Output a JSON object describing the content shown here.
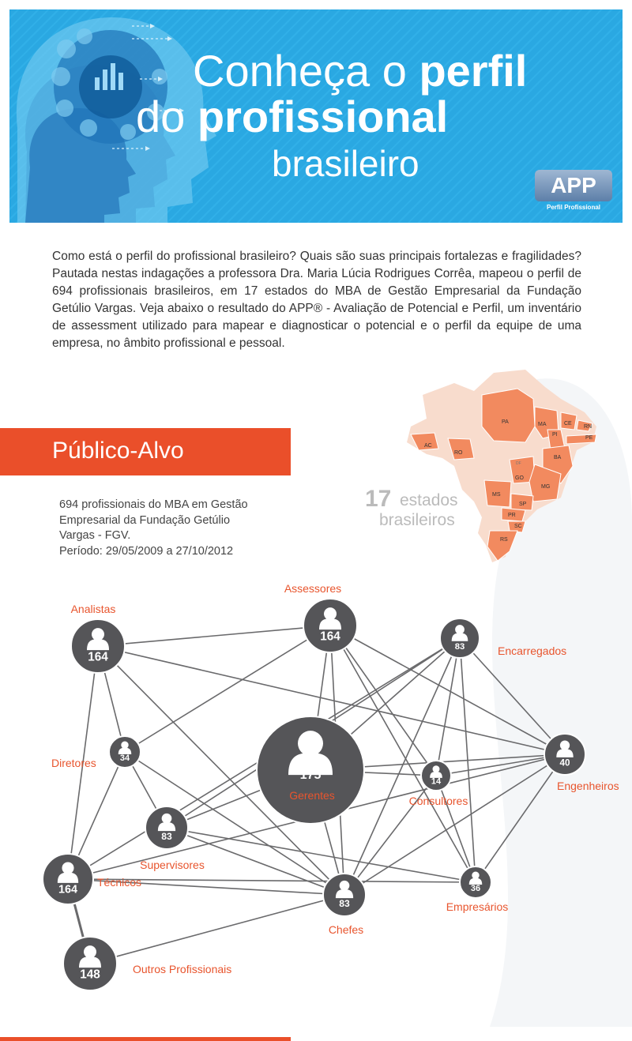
{
  "header": {
    "title_line1_light": "Conheça o ",
    "title_line1_bold": "perfil",
    "title_line2_light": "do ",
    "title_line2_bold": "profissional",
    "title_line3": "brasileiro",
    "logo_text": "APP",
    "logo_subtitle": "Perfil Profissional"
  },
  "intro": "Como está o perfil do profissional brasileiro? Quais são suas principais fortalezas e fragilidades? Pautada nestas indagações a professora Dra. Maria Lúcia Rodrigues Corrêa, mapeou o perfil de 694 profissionais brasileiros, em 17 estados do MBA de Gestão Empresarial da Fundação Getúlio Vargas. Veja abaixo o resultado do APP® - Avaliação de Potencial e Perfil,  um inventário de assessment utilizado para mapear e diagnosticar o potencial e o perfil da equipe de uma empresa, no âmbito profissional e pessoal.",
  "publico": {
    "title": "Público-Alvo",
    "lines": [
      "694 profissionais do MBA em Gestão",
      "Empresarial da Fundação Getúlio",
      "Vargas - FGV.",
      "Período: 29/05/2009 a 27/10/2012"
    ]
  },
  "map": {
    "count": "17",
    "label_line1": "estados",
    "label_line2": "brasileiros",
    "states": [
      "PA",
      "MA",
      "CE",
      "RN",
      "PI",
      "PE",
      "BA",
      "AC",
      "RO",
      "DF",
      "GO",
      "MG",
      "MS",
      "SP",
      "PR",
      "SC",
      "RS"
    ],
    "highlight_color": "#f28a5f"
  },
  "network": {
    "nodes": [
      {
        "id": "analistas",
        "label": "Analistas",
        "value": "164"
      },
      {
        "id": "assessores",
        "label": "Assessores",
        "value": "164"
      },
      {
        "id": "encarregados",
        "label": "Encarregados",
        "value": "83"
      },
      {
        "id": "diretores",
        "label": "Diretores",
        "value": "34"
      },
      {
        "id": "gerentes",
        "label": "Gerentes",
        "value": "175"
      },
      {
        "id": "consultores",
        "label": "Consultores",
        "value": "14"
      },
      {
        "id": "engenheiros",
        "label": "Engenheiros",
        "value": "40"
      },
      {
        "id": "supervisores",
        "label": "Supervisores",
        "value": "83"
      },
      {
        "id": "tecnicos",
        "label": "Técnicos",
        "value": "164"
      },
      {
        "id": "chefes",
        "label": "Chefes",
        "value": "83"
      },
      {
        "id": "empresarios",
        "label": "Empresários",
        "value": "36"
      },
      {
        "id": "outros",
        "label": "Outros Profissionais",
        "value": "148"
      }
    ],
    "edges": [
      [
        "analistas",
        "diretores"
      ],
      [
        "analistas",
        "tecnicos"
      ],
      [
        "analistas",
        "assessores"
      ],
      [
        "analistas",
        "chefes"
      ],
      [
        "analistas",
        "engenheiros"
      ],
      [
        "assessores",
        "diretores"
      ],
      [
        "assessores",
        "gerentes"
      ],
      [
        "assessores",
        "chefes"
      ],
      [
        "assessores",
        "consultores"
      ],
      [
        "assessores",
        "engenheiros"
      ],
      [
        "assessores",
        "empresarios"
      ],
      [
        "encarregados",
        "gerentes"
      ],
      [
        "encarregados",
        "consultores"
      ],
      [
        "encarregados",
        "engenheiros"
      ],
      [
        "encarregados",
        "chefes"
      ],
      [
        "encarregados",
        "empresarios"
      ],
      [
        "encarregados",
        "supervisores"
      ],
      [
        "encarregados",
        "tecnicos"
      ],
      [
        "diretores",
        "supervisores"
      ],
      [
        "diretores",
        "tecnicos"
      ],
      [
        "diretores",
        "chefes"
      ],
      [
        "gerentes",
        "consultores"
      ],
      [
        "gerentes",
        "engenheiros"
      ],
      [
        "gerentes",
        "chefes"
      ],
      [
        "gerentes",
        "supervisores"
      ],
      [
        "consultores",
        "engenheiros"
      ],
      [
        "consultores",
        "chefes"
      ],
      [
        "consultores",
        "empresarios"
      ],
      [
        "engenheiros",
        "tecnicos"
      ],
      [
        "engenheiros",
        "chefes"
      ],
      [
        "engenheiros",
        "empresarios"
      ],
      [
        "supervisores",
        "chefes"
      ],
      [
        "supervisores",
        "empresarios"
      ],
      [
        "tecnicos",
        "chefes"
      ],
      [
        "tecnicos",
        "outros"
      ],
      [
        "tecnicos",
        "empresarios"
      ],
      [
        "chefes",
        "outros"
      ]
    ],
    "node_color": "#555558",
    "label_color": "#e8552e"
  }
}
